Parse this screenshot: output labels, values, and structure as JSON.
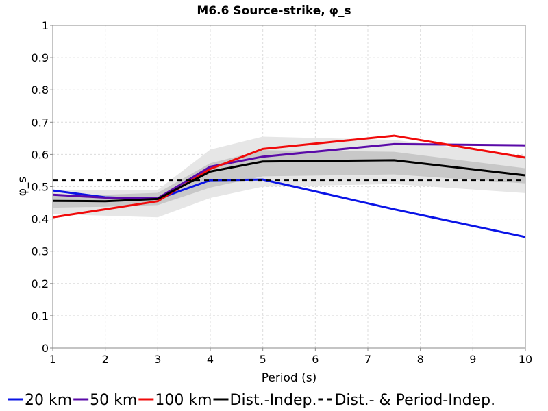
{
  "chart_data": {
    "type": "line",
    "title": "M6.6 Source-strike, φ_s",
    "xlabel": "Period (s)",
    "ylabel": "φ_s",
    "xlim": [
      1,
      10
    ],
    "ylim": [
      0,
      1
    ],
    "grid": true,
    "legend_placement": "bottom",
    "xticks": [
      1,
      2,
      3,
      4,
      5,
      6,
      7,
      8,
      9,
      10
    ],
    "yticks": [
      0,
      0.1,
      0.2,
      0.3,
      0.4,
      0.5,
      0.6,
      0.7,
      0.8,
      0.9,
      1
    ],
    "ytick_labels": [
      "0",
      "0.1",
      "0.2",
      "0.3",
      "0.4",
      "0.5",
      "0.6",
      "0.7",
      "0.8",
      "0.9",
      "1"
    ],
    "series": [
      {
        "name": "20 km",
        "color": "#0a14e6",
        "style": "solid",
        "x": [
          1,
          2,
          3,
          4,
          5,
          7.5,
          10
        ],
        "y": [
          0.488,
          0.467,
          0.462,
          0.52,
          0.522,
          0.43,
          0.344
        ]
      },
      {
        "name": "50 km",
        "color": "#5a0aa8",
        "style": "solid",
        "x": [
          1,
          2,
          3,
          4,
          5,
          7.5,
          10
        ],
        "y": [
          0.475,
          0.466,
          0.464,
          0.562,
          0.593,
          0.632,
          0.628
        ]
      },
      {
        "name": "100 km",
        "color": "#f00a0a",
        "style": "solid",
        "x": [
          1,
          2,
          3,
          4,
          5,
          7.5,
          10
        ],
        "y": [
          0.405,
          0.43,
          0.455,
          0.555,
          0.617,
          0.658,
          0.59
        ]
      },
      {
        "name": "Dist.-Indep.",
        "color": "#000000",
        "style": "solid",
        "x": [
          1,
          2,
          3,
          4,
          5,
          7.5,
          10
        ],
        "y": [
          0.456,
          0.455,
          0.462,
          0.547,
          0.578,
          0.582,
          0.535
        ]
      },
      {
        "name": "Dist.- & Period-Indep.",
        "color": "#000000",
        "style": "dashed",
        "x": [
          1,
          10
        ],
        "y": [
          0.52,
          0.52
        ]
      }
    ],
    "bands": [
      {
        "color": "#e6e6e6",
        "x": [
          1,
          2,
          3,
          4,
          5,
          7.5,
          10
        ],
        "lower": [
          0.415,
          0.41,
          0.405,
          0.465,
          0.5,
          0.508,
          0.48
        ],
        "upper": [
          0.49,
          0.49,
          0.49,
          0.615,
          0.655,
          0.645,
          0.595
        ]
      },
      {
        "color": "#c8c8c8",
        "x": [
          1,
          2,
          3,
          4,
          5,
          7.5,
          10
        ],
        "lower": [
          0.435,
          0.438,
          0.443,
          0.497,
          0.532,
          0.538,
          0.51
        ],
        "upper": [
          0.475,
          0.475,
          0.481,
          0.573,
          0.613,
          0.608,
          0.557
        ]
      }
    ]
  }
}
